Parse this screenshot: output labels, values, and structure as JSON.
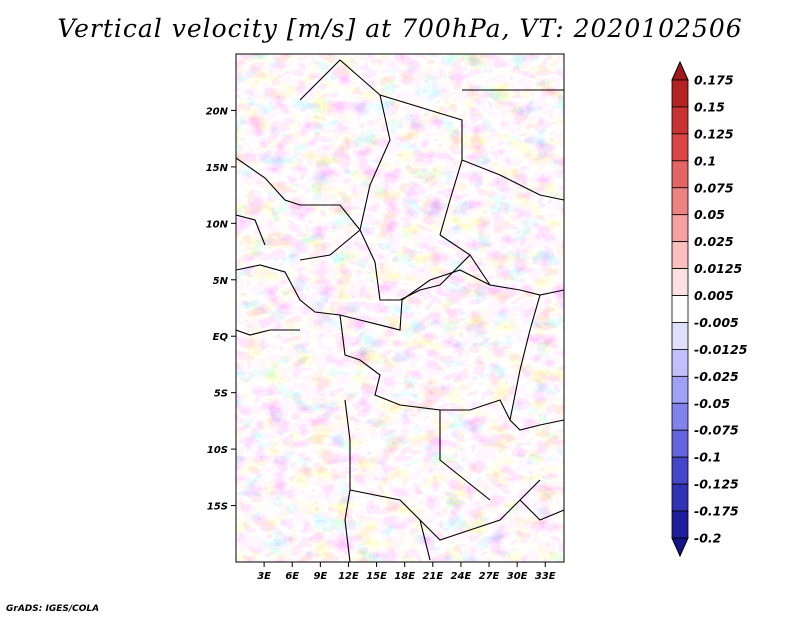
{
  "title": "Vertical velocity [m/s] at 700hPa, VT: 2020102506",
  "credit": "GrADS: IGES/COLA",
  "map": {
    "lon_range": [
      0,
      35
    ],
    "lat_range": [
      -20,
      25
    ],
    "lat_ticks": [
      {
        "value": 20,
        "label": "20N"
      },
      {
        "value": 15,
        "label": "15N"
      },
      {
        "value": 10,
        "label": "10N"
      },
      {
        "value": 5,
        "label": "5N"
      },
      {
        "value": 0,
        "label": "EQ"
      },
      {
        "value": -5,
        "label": "5S"
      },
      {
        "value": -10,
        "label": "10S"
      },
      {
        "value": -15,
        "label": "15S"
      }
    ],
    "lon_ticks": [
      {
        "value": 3,
        "label": "3E"
      },
      {
        "value": 6,
        "label": "6E"
      },
      {
        "value": 9,
        "label": "9E"
      },
      {
        "value": 12,
        "label": "12E"
      },
      {
        "value": 15,
        "label": "15E"
      },
      {
        "value": 18,
        "label": "18E"
      },
      {
        "value": 21,
        "label": "21E"
      },
      {
        "value": 24,
        "label": "24E"
      },
      {
        "value": 27,
        "label": "27E"
      },
      {
        "value": 30,
        "label": "30E"
      },
      {
        "value": 33,
        "label": "33E"
      }
    ]
  },
  "colorbar": {
    "labels": [
      "0.175",
      "0.15",
      "0.125",
      "0.1",
      "0.075",
      "0.05",
      "0.025",
      "0.0125",
      "0.005",
      "-0.005",
      "-0.0125",
      "-0.025",
      "-0.05",
      "-0.075",
      "-0.1",
      "-0.125",
      "-0.175",
      "-0.2"
    ],
    "colors": [
      "#a01818",
      "#b42222",
      "#c83232",
      "#dc4646",
      "#e46464",
      "#ec8282",
      "#f4a0a0",
      "#fac0c0",
      "#fde0e0",
      "#ffffff",
      "#e0e0fd",
      "#c0c0fa",
      "#a0a0f4",
      "#8282ec",
      "#6464e0",
      "#4646cc",
      "#3232b4",
      "#1e1e9c",
      "#14148a"
    ]
  }
}
